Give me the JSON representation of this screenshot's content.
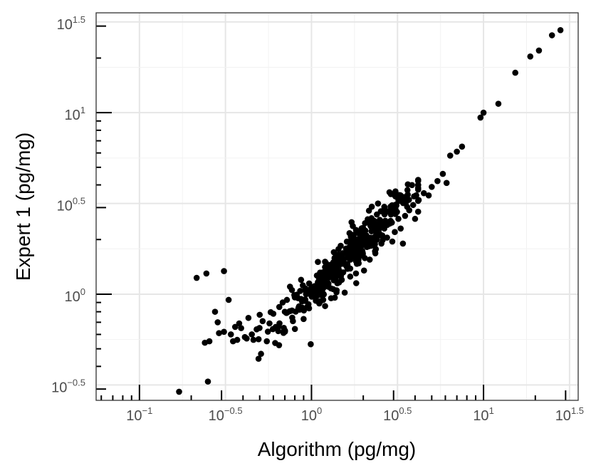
{
  "chart_data": {
    "type": "scatter",
    "title": "",
    "xlabel": "Algorithm (pg/mg)",
    "ylabel": "Expert 1 (pg/mg)",
    "x_scale": "log10",
    "y_scale": "log10",
    "xlim": [
      0.056,
      35.5
    ],
    "ylim": [
      0.26,
      35.5
    ],
    "grid": true,
    "legend": "none",
    "marker_color": "#000000",
    "x_ticks": [
      {
        "value": 0.1,
        "base": "10",
        "exp": "−1"
      },
      {
        "value": 0.3162,
        "base": "10",
        "exp": "−0.5"
      },
      {
        "value": 1,
        "base": "10",
        "exp": "0"
      },
      {
        "value": 3.162,
        "base": "10",
        "exp": "0.5"
      },
      {
        "value": 10,
        "base": "10",
        "exp": "1"
      },
      {
        "value": 31.62,
        "base": "10",
        "exp": "1.5"
      }
    ],
    "y_ticks": [
      {
        "value": 0.3162,
        "base": "10",
        "exp": "−0.5"
      },
      {
        "value": 1,
        "base": "10",
        "exp": "0"
      },
      {
        "value": 3.162,
        "base": "10",
        "exp": "0.5"
      },
      {
        "value": 10,
        "base": "10",
        "exp": "1"
      },
      {
        "value": 31.62,
        "base": "10",
        "exp": "1.5"
      }
    ],
    "points": [
      {
        "x": 0.17,
        "y": 0.29
      },
      {
        "x": 0.215,
        "y": 1.23
      },
      {
        "x": 0.245,
        "y": 1.3
      },
      {
        "x": 0.24,
        "y": 0.54
      },
      {
        "x": 0.255,
        "y": 0.55
      },
      {
        "x": 0.25,
        "y": 0.33
      },
      {
        "x": 0.275,
        "y": 0.8
      },
      {
        "x": 0.285,
        "y": 0.7
      },
      {
        "x": 0.29,
        "y": 0.61
      },
      {
        "x": 0.31,
        "y": 1.34
      },
      {
        "x": 0.33,
        "y": 0.93
      },
      {
        "x": 0.31,
        "y": 0.62
      },
      {
        "x": 0.34,
        "y": 0.6
      },
      {
        "x": 0.35,
        "y": 0.55
      },
      {
        "x": 0.36,
        "y": 0.66
      },
      {
        "x": 0.37,
        "y": 0.56
      },
      {
        "x": 0.38,
        "y": 0.69
      },
      {
        "x": 0.39,
        "y": 0.65
      },
      {
        "x": 0.41,
        "y": 0.58
      },
      {
        "x": 0.42,
        "y": 0.57
      },
      {
        "x": 0.43,
        "y": 0.74
      },
      {
        "x": 0.45,
        "y": 0.6
      },
      {
        "x": 0.46,
        "y": 0.56
      },
      {
        "x": 0.48,
        "y": 0.64
      },
      {
        "x": 0.5,
        "y": 0.77
      },
      {
        "x": 0.52,
        "y": 0.71
      },
      {
        "x": 0.55,
        "y": 0.55
      },
      {
        "x": 0.57,
        "y": 0.69
      },
      {
        "x": 0.6,
        "y": 0.78
      },
      {
        "x": 0.62,
        "y": 0.66
      },
      {
        "x": 0.65,
        "y": 0.85
      },
      {
        "x": 0.68,
        "y": 0.9
      },
      {
        "x": 0.7,
        "y": 0.8
      },
      {
        "x": 0.72,
        "y": 0.93
      },
      {
        "x": 0.75,
        "y": 1.1
      },
      {
        "x": 0.78,
        "y": 0.71
      },
      {
        "x": 0.8,
        "y": 0.96
      },
      {
        "x": 0.84,
        "y": 0.84
      },
      {
        "x": 0.87,
        "y": 1.2
      },
      {
        "x": 0.9,
        "y": 0.73
      },
      {
        "x": 0.93,
        "y": 1.0
      },
      {
        "x": 0.96,
        "y": 0.88
      },
      {
        "x": 0.99,
        "y": 0.53
      },
      {
        "x": 1.02,
        "y": 1.06
      },
      {
        "x": 1.06,
        "y": 0.92
      },
      {
        "x": 1.1,
        "y": 1.18
      },
      {
        "x": 1.14,
        "y": 0.99
      },
      {
        "x": 1.17,
        "y": 1.28
      },
      {
        "x": 1.2,
        "y": 0.86
      },
      {
        "x": 1.25,
        "y": 1.1
      },
      {
        "x": 1.3,
        "y": 0.95
      },
      {
        "x": 1.35,
        "y": 1.32
      },
      {
        "x": 1.4,
        "y": 1.05
      },
      {
        "x": 1.45,
        "y": 1.45
      },
      {
        "x": 1.5,
        "y": 1.2
      },
      {
        "x": 1.56,
        "y": 1.02
      },
      {
        "x": 1.62,
        "y": 1.38
      },
      {
        "x": 1.68,
        "y": 1.25
      },
      {
        "x": 1.75,
        "y": 1.6
      },
      {
        "x": 1.82,
        "y": 1.15
      },
      {
        "x": 1.88,
        "y": 1.48
      },
      {
        "x": 1.95,
        "y": 1.72
      },
      {
        "x": 2.02,
        "y": 1.35
      },
      {
        "x": 2.1,
        "y": 1.82
      },
      {
        "x": 2.18,
        "y": 1.55
      },
      {
        "x": 2.26,
        "y": 2.0
      },
      {
        "x": 2.35,
        "y": 1.68
      },
      {
        "x": 2.4,
        "y": 2.75
      },
      {
        "x": 2.45,
        "y": 2.1
      },
      {
        "x": 2.55,
        "y": 1.9
      },
      {
        "x": 2.65,
        "y": 2.3
      },
      {
        "x": 2.75,
        "y": 2.05
      },
      {
        "x": 2.85,
        "y": 2.45
      },
      {
        "x": 2.95,
        "y": 1.95
      },
      {
        "x": 3.05,
        "y": 2.2
      },
      {
        "x": 3.2,
        "y": 2.6
      },
      {
        "x": 3.3,
        "y": 2.3
      },
      {
        "x": 3.4,
        "y": 1.9
      },
      {
        "x": 3.5,
        "y": 2.7
      },
      {
        "x": 3.7,
        "y": 2.9
      },
      {
        "x": 3.9,
        "y": 3.1
      },
      {
        "x": 4.0,
        "y": 2.6
      },
      {
        "x": 4.2,
        "y": 3.3
      },
      {
        "x": 4.5,
        "y": 3.6
      },
      {
        "x": 4.8,
        "y": 3.5
      },
      {
        "x": 5.0,
        "y": 3.9
      },
      {
        "x": 5.4,
        "y": 4.2
      },
      {
        "x": 5.8,
        "y": 4.6
      },
      {
        "x": 6.1,
        "y": 4.1
      },
      {
        "x": 6.4,
        "y": 5.8
      },
      {
        "x": 7.0,
        "y": 6.1
      },
      {
        "x": 7.5,
        "y": 6.5
      },
      {
        "x": 9.6,
        "y": 9.4
      },
      {
        "x": 10.0,
        "y": 10.0
      },
      {
        "x": 12.2,
        "y": 11.2
      },
      {
        "x": 15.3,
        "y": 16.6
      },
      {
        "x": 18.7,
        "y": 20.4
      },
      {
        "x": 21.0,
        "y": 22.0
      },
      {
        "x": 25.0,
        "y": 26.7
      },
      {
        "x": 28.0,
        "y": 28.5
      }
    ],
    "cloud_seed": 12,
    "cloud_points": 400
  }
}
